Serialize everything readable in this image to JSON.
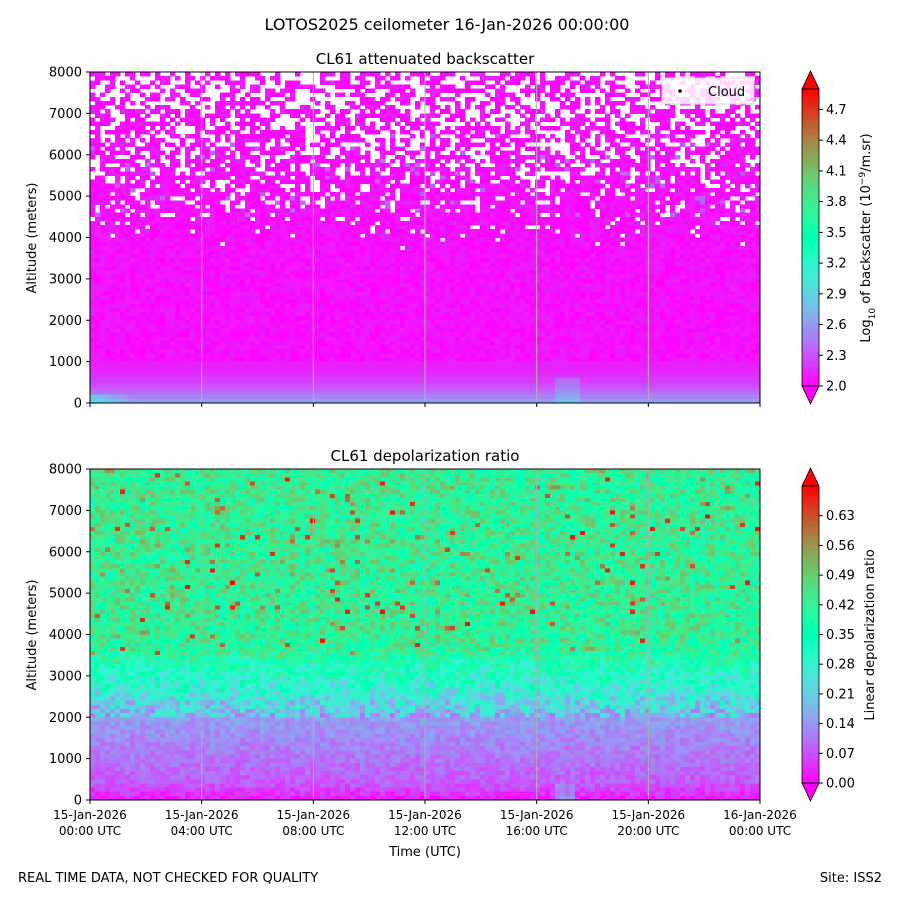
{
  "figure": {
    "title": "LOTOS2025 ceilometer 16-Jan-2026 00:00:00",
    "footer_left": "REAL TIME DATA, NOT CHECKED FOR QUALITY",
    "footer_right": "Site: ISS2"
  },
  "chart_data": [
    {
      "type": "heatmap",
      "title": "CL61 attenuated backscatter",
      "xlabel": "",
      "ylabel": "Altitude (meters)",
      "ylim": [
        0,
        8000
      ],
      "yticks": [
        "0",
        "1000",
        "2000",
        "3000",
        "4000",
        "5000",
        "6000",
        "7000",
        "8000"
      ],
      "xlim_hours": [
        0,
        24
      ],
      "grid": "vertical lines every 4 hours",
      "legend": {
        "placement": "top-right",
        "entries": [
          "Cloud"
        ]
      },
      "colorbar": {
        "label_prefix": "Log",
        "label_sub": "10",
        "label_mid": " of backscatter (10",
        "label_sup": "−9",
        "label_suffix": "/m.sr)",
        "range": [
          2.0,
          4.9
        ],
        "ticks": [
          "2.0",
          "2.3",
          "2.6",
          "2.9",
          "3.2",
          "3.5",
          "3.8",
          "4.1",
          "4.4",
          "4.7"
        ],
        "colormap": "rainbow",
        "extend": "both"
      },
      "profile_description": {
        "surface_value": 2.6,
        "boundary_layer_top_m": 1000,
        "background_value": 2.0,
        "missing_data_above_m": 3700
      }
    },
    {
      "type": "heatmap",
      "title": "CL61 depolarization ratio",
      "xlabel": "Time (UTC)",
      "ylabel": "Altitude (meters)",
      "ylim": [
        0,
        8000
      ],
      "yticks": [
        "0",
        "1000",
        "2000",
        "3000",
        "4000",
        "5000",
        "6000",
        "7000",
        "8000"
      ],
      "xticks": [
        {
          "date": "15-Jan-2026",
          "time": "00:00 UTC"
        },
        {
          "date": "15-Jan-2026",
          "time": "04:00 UTC"
        },
        {
          "date": "15-Jan-2026",
          "time": "08:00 UTC"
        },
        {
          "date": "15-Jan-2026",
          "time": "12:00 UTC"
        },
        {
          "date": "15-Jan-2026",
          "time": "16:00 UTC"
        },
        {
          "date": "15-Jan-2026",
          "time": "20:00 UTC"
        },
        {
          "date": "16-Jan-2026",
          "time": "00:00 UTC"
        }
      ],
      "xlim_hours": [
        0,
        24
      ],
      "grid": "vertical lines every 4 hours",
      "colorbar": {
        "label": "Linear depolarization ratio",
        "range": [
          0.0,
          0.7
        ],
        "ticks": [
          "0.00",
          "0.07",
          "0.14",
          "0.21",
          "0.28",
          "0.35",
          "0.42",
          "0.49",
          "0.56",
          "0.63"
        ],
        "colormap": "rainbow",
        "extend": "both"
      },
      "profile_description": {
        "surface_value": 0.02,
        "low_layer_value": 0.08,
        "transition_altitude_m": 2000,
        "upper_value": 0.42
      }
    }
  ]
}
